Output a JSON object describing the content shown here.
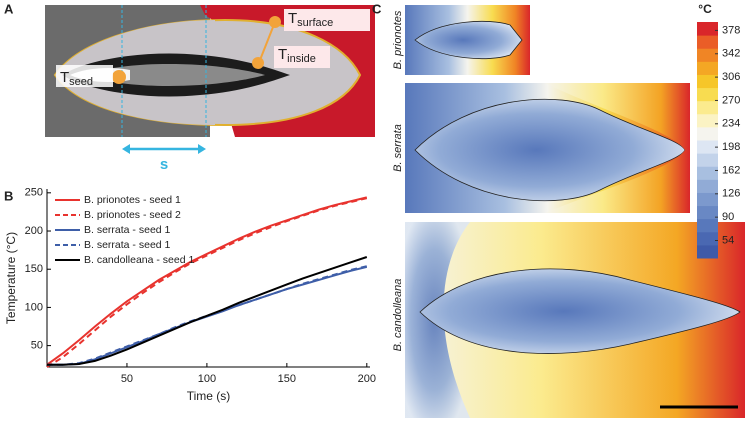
{
  "panel_labels": [
    "A",
    "B",
    "C"
  ],
  "panel_a": {
    "t_seed": {
      "main": "T",
      "sub": "seed"
    },
    "t_surface": {
      "main": "T",
      "sub": "surface"
    },
    "t_inside": {
      "main": "T",
      "sub": "inside"
    },
    "distance": "s"
  },
  "chart_data": {
    "type": "line",
    "xlabel": "Time (s)",
    "ylabel": "Temperature (°C)",
    "x": [
      0,
      10,
      20,
      30,
      40,
      50,
      60,
      70,
      80,
      90,
      100,
      110,
      120,
      130,
      140,
      150,
      160,
      170,
      180,
      190,
      200
    ],
    "xlim": [
      0,
      202
    ],
    "ylim": [
      22,
      255
    ],
    "xticks": [
      50,
      100,
      150,
      200
    ],
    "yticks": [
      50,
      100,
      150,
      200,
      250
    ],
    "legend": "upper left",
    "series": [
      {
        "name": "B. prionotes - seed 1",
        "color": "#e8332e",
        "dash": false,
        "values": [
          25,
          40,
          57,
          75,
          92,
          108,
          122,
          136,
          148,
          160,
          170,
          180,
          190,
          199,
          207,
          214,
          221,
          228,
          234,
          239,
          244
        ]
      },
      {
        "name": "B. prionotes - seed 2",
        "color": "#e8332e",
        "dash": true,
        "values": [
          22,
          35,
          52,
          70,
          88,
          104,
          119,
          133,
          146,
          158,
          168,
          178,
          188,
          197,
          205,
          213,
          220,
          227,
          233,
          238,
          243
        ]
      },
      {
        "name": "B. serrata - seed 1",
        "color": "#3e5ea8",
        "dash": false,
        "values": [
          25,
          25,
          26,
          32,
          40,
          48,
          56,
          65,
          73,
          81,
          88,
          95,
          103,
          110,
          117,
          124,
          130,
          136,
          142,
          148,
          153
        ]
      },
      {
        "name": "B. serrata - seed 1",
        "color": "#3e5ea8",
        "dash": true,
        "values": [
          25,
          25,
          27,
          33,
          41,
          49,
          57,
          65,
          74,
          82,
          89,
          96,
          103,
          110,
          117,
          124,
          131,
          137,
          143,
          149,
          154
        ]
      },
      {
        "name": "B. candolleana - seed 1",
        "color": "#000000",
        "dash": false,
        "values": [
          25,
          25,
          26,
          30,
          37,
          45,
          54,
          63,
          72,
          81,
          89,
          97,
          106,
          114,
          122,
          130,
          138,
          145,
          152,
          159,
          166
        ]
      }
    ]
  },
  "panel_c": {
    "rows": [
      "B. prionotes",
      "B. serrata",
      "B. candolleana"
    ],
    "colorbar": {
      "unit": "°C",
      "lim": [
        27,
        391
      ],
      "ticks": [
        54,
        90,
        126,
        162,
        198,
        234,
        270,
        306,
        342,
        378
      ],
      "colors": [
        "#3f5aa8",
        "#4a68b2",
        "#5878bb",
        "#6988c4",
        "#7c99cd",
        "#91abd6",
        "#a8bfe0",
        "#c3d3ea",
        "#dde6f3",
        "#f5f4ee",
        "#fbf3c4",
        "#fbeb8e",
        "#f8dc50",
        "#f6c629",
        "#f4a724",
        "#f08525",
        "#ea5d27",
        "#d9262a"
      ]
    }
  }
}
